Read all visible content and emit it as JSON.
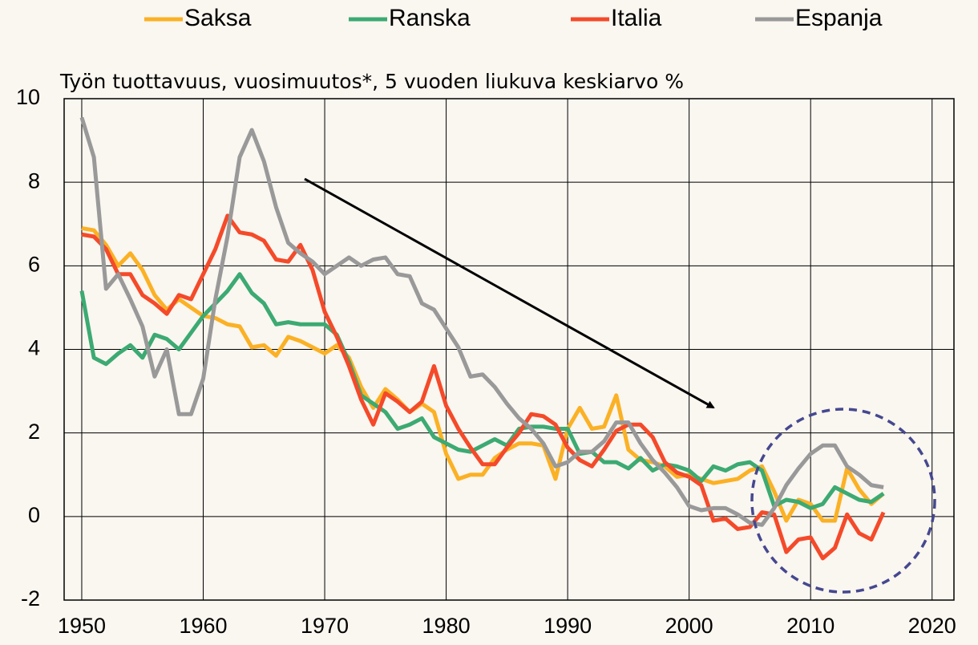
{
  "chart_data": {
    "type": "line",
    "subtitle": "Työn tuottavuus, vuosimuutos*, 5 vuoden liukuva keskiarvo %",
    "x": [
      1950,
      1951,
      1952,
      1953,
      1954,
      1955,
      1956,
      1957,
      1958,
      1959,
      1960,
      1961,
      1962,
      1963,
      1964,
      1965,
      1966,
      1967,
      1968,
      1969,
      1970,
      1971,
      1972,
      1973,
      1974,
      1975,
      1976,
      1977,
      1978,
      1979,
      1980,
      1981,
      1982,
      1983,
      1984,
      1985,
      1986,
      1987,
      1988,
      1989,
      1990,
      1991,
      1992,
      1993,
      1994,
      1995,
      1996,
      1997,
      1998,
      1999,
      2000,
      2001,
      2002,
      2003,
      2004,
      2005,
      2006,
      2007,
      2008,
      2009,
      2010,
      2011,
      2012,
      2013,
      2014,
      2015,
      2016
    ],
    "series": [
      {
        "name": "Saksa",
        "color": "#fbb125",
        "values": [
          6.9,
          6.85,
          6.5,
          6.0,
          6.3,
          5.9,
          5.3,
          4.95,
          5.2,
          5.0,
          4.8,
          4.75,
          4.6,
          4.55,
          4.05,
          4.1,
          3.85,
          4.3,
          4.2,
          4.05,
          3.9,
          4.1,
          3.8,
          3.1,
          2.6,
          3.05,
          2.8,
          2.5,
          2.7,
          2.5,
          1.5,
          0.9,
          1.0,
          1.0,
          1.4,
          1.6,
          1.75,
          1.75,
          1.7,
          0.9,
          2.1,
          2.6,
          2.1,
          2.15,
          2.9,
          1.6,
          1.35,
          1.3,
          1.2,
          0.95,
          1.0,
          0.9,
          0.8,
          0.85,
          0.9,
          1.1,
          1.2,
          0.6,
          -0.1,
          0.4,
          0.3,
          -0.1,
          -0.1,
          1.15,
          0.65,
          0.3,
          0.55
        ]
      },
      {
        "name": "Ranska",
        "color": "#3caa72",
        "values": [
          5.4,
          3.8,
          3.65,
          3.9,
          4.1,
          3.8,
          4.35,
          4.25,
          4.0,
          4.4,
          4.8,
          5.1,
          5.4,
          5.8,
          5.35,
          5.1,
          4.6,
          4.65,
          4.6,
          4.6,
          4.6,
          4.35,
          3.7,
          2.9,
          2.7,
          2.5,
          2.1,
          2.2,
          2.35,
          1.9,
          1.75,
          1.6,
          1.55,
          1.7,
          1.85,
          1.7,
          2.1,
          2.15,
          2.15,
          2.1,
          2.1,
          1.5,
          1.55,
          1.3,
          1.3,
          1.15,
          1.4,
          1.1,
          1.25,
          1.2,
          1.1,
          0.85,
          1.2,
          1.1,
          1.25,
          1.3,
          1.1,
          0.25,
          0.4,
          0.35,
          0.2,
          0.3,
          0.7,
          0.55,
          0.4,
          0.35,
          0.55
        ]
      },
      {
        "name": "Italia",
        "color": "#f44a2a",
        "values": [
          6.75,
          6.7,
          6.4,
          5.8,
          5.8,
          5.3,
          5.1,
          4.85,
          5.3,
          5.2,
          5.8,
          6.4,
          7.2,
          6.8,
          6.75,
          6.6,
          6.15,
          6.1,
          6.5,
          5.9,
          4.9,
          4.3,
          3.6,
          2.8,
          2.2,
          2.95,
          2.75,
          2.5,
          2.75,
          3.6,
          2.65,
          2.1,
          1.65,
          1.25,
          1.25,
          1.65,
          2.0,
          2.45,
          2.4,
          2.2,
          1.65,
          1.35,
          1.2,
          1.6,
          2.05,
          2.2,
          2.2,
          1.9,
          1.3,
          1.05,
          0.95,
          0.75,
          -0.1,
          -0.05,
          -0.3,
          -0.25,
          0.1,
          0.05,
          -0.85,
          -0.55,
          -0.5,
          -1.0,
          -0.75,
          0.05,
          -0.4,
          -0.55,
          0.1
        ]
      },
      {
        "name": "Espanja",
        "color": "#999999",
        "values": [
          9.55,
          8.6,
          5.45,
          5.8,
          5.2,
          4.55,
          3.35,
          4.0,
          2.45,
          2.45,
          3.3,
          5.2,
          6.7,
          8.6,
          9.25,
          8.5,
          7.4,
          6.55,
          6.3,
          6.1,
          5.8,
          6.0,
          6.2,
          6.0,
          6.15,
          6.2,
          5.8,
          5.75,
          5.1,
          4.95,
          4.5,
          4.05,
          3.35,
          3.4,
          3.1,
          2.7,
          2.35,
          2.1,
          1.75,
          1.2,
          1.3,
          1.55,
          1.55,
          1.8,
          2.25,
          2.25,
          1.75,
          1.35,
          1.05,
          0.7,
          0.25,
          0.15,
          0.2,
          0.2,
          0.05,
          -0.15,
          -0.2,
          0.2,
          0.75,
          1.15,
          1.5,
          1.7,
          1.7,
          1.2,
          1.0,
          0.75,
          0.7
        ]
      }
    ],
    "xlim": [
      1948.55,
      2021.8
    ],
    "xticks": [
      1950,
      1960,
      1970,
      1980,
      1990,
      2000,
      2010,
      2020
    ],
    "ylim": [
      -2,
      10
    ],
    "yticks": [
      -2,
      0,
      2,
      4,
      6,
      8,
      10
    ],
    "grid": true
  }
}
